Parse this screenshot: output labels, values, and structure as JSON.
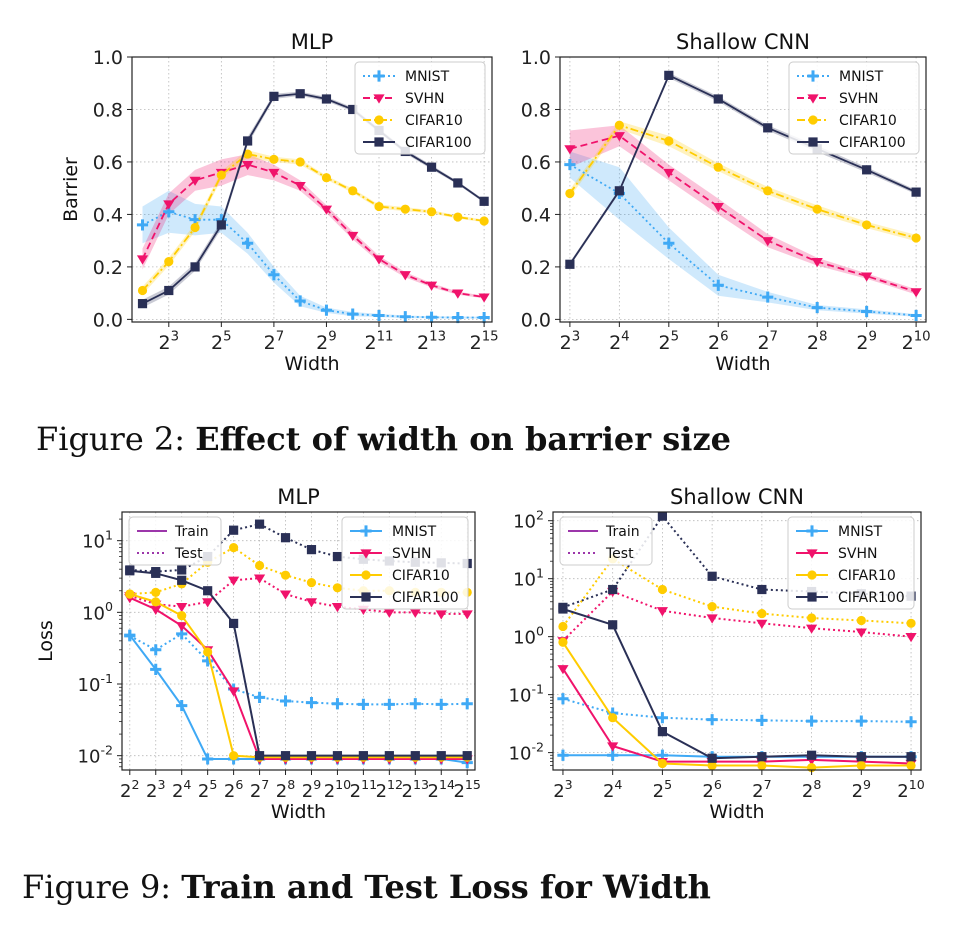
{
  "figures": [
    {
      "caption_label": "Figure 2:",
      "caption_title": "Effect of width on barrier size"
    },
    {
      "caption_label": "Figure 9:",
      "caption_title": "Train and Test Loss for Width"
    }
  ],
  "colors": {
    "MNIST": "#3fa9f5",
    "SVHN": "#f0136b",
    "CIFAR10": "#ffcc00",
    "CIFAR100": "#2a3056"
  },
  "chart_data": [
    {
      "type": "line",
      "title": "MLP",
      "xlabel": "Width",
      "ylabel": "Barrier",
      "xscale": "log2",
      "yscale": "linear",
      "xlim": [
        1.6,
        15.3
      ],
      "ylim": [
        -0.01,
        1.0
      ],
      "xticks": [
        3,
        5,
        7,
        9,
        11,
        13,
        15
      ],
      "yticks": [
        0.0,
        0.2,
        0.4,
        0.6,
        0.8,
        1.0
      ],
      "ytick_labels": [
        "0.0",
        "0.2",
        "0.4",
        "0.6",
        "0.8",
        "1.0"
      ],
      "grid": true,
      "legend": "top-right",
      "x": [
        2,
        3,
        4,
        5,
        6,
        7,
        8,
        9,
        10,
        11,
        12,
        13,
        14,
        15
      ],
      "series": [
        {
          "name": "MNIST",
          "style": "dotted",
          "marker": "plus",
          "values": [
            0.36,
            0.41,
            0.38,
            0.38,
            0.29,
            0.17,
            0.07,
            0.035,
            0.02,
            0.015,
            0.01,
            0.008,
            0.007,
            0.007
          ],
          "band": [
            0.07,
            0.08,
            0.06,
            0.05,
            0.04,
            0.03,
            0.02,
            0.01,
            0.008,
            0.006,
            0.005,
            0.004,
            0.004,
            0.003
          ]
        },
        {
          "name": "SVHN",
          "style": "dashed",
          "marker": "triangle",
          "values": [
            0.23,
            0.44,
            0.53,
            0.56,
            0.59,
            0.56,
            0.51,
            0.42,
            0.32,
            0.23,
            0.17,
            0.13,
            0.1,
            0.085
          ],
          "band": [
            0.04,
            0.04,
            0.04,
            0.05,
            0.04,
            0.03,
            0.02,
            0.015,
            0.015,
            0.012,
            0.01,
            0.008,
            0.006,
            0.005
          ]
        },
        {
          "name": "CIFAR10",
          "style": "dashdot",
          "marker": "circle",
          "values": [
            0.11,
            0.22,
            0.35,
            0.55,
            0.63,
            0.61,
            0.6,
            0.54,
            0.49,
            0.43,
            0.42,
            0.41,
            0.39,
            0.375
          ],
          "band": [
            0.015,
            0.015,
            0.015,
            0.015,
            0.015,
            0.01,
            0.01,
            0.008,
            0.008,
            0.008,
            0.008,
            0.006,
            0.006,
            0.005
          ]
        },
        {
          "name": "CIFAR100",
          "style": "solid",
          "marker": "square",
          "values": [
            0.06,
            0.11,
            0.2,
            0.36,
            0.68,
            0.85,
            0.86,
            0.84,
            0.8,
            0.72,
            0.64,
            0.58,
            0.52,
            0.45
          ],
          "band": [
            0.015,
            0.015,
            0.015,
            0.015,
            0.015,
            0.01,
            0.008,
            0.008,
            0.008,
            0.008,
            0.008,
            0.008,
            0.006,
            0.006
          ]
        }
      ]
    },
    {
      "type": "line",
      "title": "Shallow CNN",
      "xlabel": "Width",
      "ylabel": "",
      "xscale": "log2",
      "yscale": "linear",
      "xlim": [
        2.8,
        10.2
      ],
      "ylim": [
        -0.01,
        1.0
      ],
      "xticks": [
        3,
        4,
        5,
        6,
        7,
        8,
        9,
        10
      ],
      "yticks": [
        0.0,
        0.2,
        0.4,
        0.6,
        0.8,
        1.0
      ],
      "ytick_labels": [
        "0.0",
        "0.2",
        "0.4",
        "0.6",
        "0.8",
        "1.0"
      ],
      "grid": true,
      "legend": "top-right",
      "x": [
        3,
        4,
        5,
        6,
        7,
        8,
        9,
        10
      ],
      "series": [
        {
          "name": "MNIST",
          "style": "dotted",
          "marker": "plus",
          "values": [
            0.59,
            0.48,
            0.29,
            0.13,
            0.085,
            0.045,
            0.03,
            0.015
          ],
          "band": [
            0.05,
            0.1,
            0.06,
            0.04,
            0.02,
            0.01,
            0.008,
            0.005
          ]
        },
        {
          "name": "SVHN",
          "style": "dashed",
          "marker": "triangle",
          "values": [
            0.65,
            0.7,
            0.56,
            0.43,
            0.3,
            0.22,
            0.165,
            0.105
          ],
          "band": [
            0.07,
            0.04,
            0.03,
            0.03,
            0.025,
            0.015,
            0.01,
            0.01
          ]
        },
        {
          "name": "CIFAR10",
          "style": "dashdot",
          "marker": "circle",
          "values": [
            0.48,
            0.74,
            0.68,
            0.58,
            0.49,
            0.42,
            0.36,
            0.31
          ],
          "band": [
            0.015,
            0.015,
            0.02,
            0.015,
            0.015,
            0.015,
            0.012,
            0.012
          ]
        },
        {
          "name": "CIFAR100",
          "style": "solid",
          "marker": "square",
          "values": [
            0.21,
            0.49,
            0.93,
            0.84,
            0.73,
            0.65,
            0.57,
            0.485
          ],
          "band": [
            0.008,
            0.008,
            0.01,
            0.01,
            0.01,
            0.012,
            0.01,
            0.008
          ]
        }
      ]
    },
    {
      "type": "line",
      "title": "MLP",
      "xlabel": "Width",
      "ylabel": "Loss",
      "xscale": "log2",
      "yscale": "log10",
      "xlim": [
        1.7,
        15.3
      ],
      "ylim": [
        -2.2,
        1.4
      ],
      "xticks": [
        2,
        3,
        4,
        5,
        6,
        7,
        8,
        9,
        10,
        11,
        12,
        13,
        14,
        15
      ],
      "yticks": [
        -2,
        -1,
        0,
        1
      ],
      "grid": true,
      "legend": "top-right",
      "style_legend": [
        "Train",
        "Test"
      ],
      "x": [
        2,
        3,
        4,
        5,
        6,
        7,
        8,
        9,
        10,
        11,
        12,
        13,
        14,
        15
      ],
      "series": [
        {
          "name": "MNIST",
          "split": "train",
          "values": [
            0.48,
            0.16,
            0.05,
            0.009,
            0.009,
            0.009,
            0.009,
            0.009,
            0.009,
            0.009,
            0.009,
            0.009,
            0.009,
            0.008
          ]
        },
        {
          "name": "MNIST",
          "split": "test",
          "values": [
            0.47,
            0.3,
            0.5,
            0.21,
            0.085,
            0.065,
            0.058,
            0.055,
            0.053,
            0.052,
            0.052,
            0.053,
            0.052,
            0.053
          ]
        },
        {
          "name": "SVHN",
          "split": "train",
          "values": [
            1.6,
            1.1,
            0.65,
            0.3,
            0.08,
            0.009,
            0.009,
            0.009,
            0.009,
            0.009,
            0.009,
            0.009,
            0.009,
            0.009
          ]
        },
        {
          "name": "SVHN",
          "split": "test",
          "values": [
            1.7,
            1.3,
            1.2,
            1.4,
            2.8,
            3.0,
            1.8,
            1.4,
            1.2,
            1.1,
            1.0,
            1.0,
            0.95,
            0.95
          ]
        },
        {
          "name": "CIFAR10",
          "split": "train",
          "values": [
            1.8,
            1.4,
            0.9,
            0.28,
            0.01,
            0.0095,
            0.0095,
            0.0095,
            0.0095,
            0.0095,
            0.0095,
            0.0095,
            0.0095,
            0.0095
          ]
        },
        {
          "name": "CIFAR10",
          "split": "test",
          "values": [
            1.8,
            1.9,
            2.5,
            5.0,
            8.0,
            4.5,
            3.3,
            2.6,
            2.2,
            2.0,
            2.0,
            1.9,
            1.9,
            1.9
          ]
        },
        {
          "name": "CIFAR100",
          "split": "train",
          "values": [
            3.8,
            3.5,
            2.8,
            2.0,
            0.7,
            0.01,
            0.01,
            0.01,
            0.01,
            0.01,
            0.01,
            0.01,
            0.01,
            0.01
          ]
        },
        {
          "name": "CIFAR100",
          "split": "test",
          "values": [
            3.9,
            3.7,
            3.9,
            6.0,
            14.0,
            17.0,
            11.0,
            7.5,
            6.0,
            5.5,
            5.2,
            5.0,
            4.9,
            4.8
          ]
        }
      ]
    },
    {
      "type": "line",
      "title": "Shallow CNN",
      "xlabel": "Width",
      "ylabel": "",
      "xscale": "log2",
      "yscale": "log10",
      "xlim": [
        2.8,
        10.2
      ],
      "ylim": [
        -2.3,
        2.15
      ],
      "xticks": [
        3,
        4,
        5,
        6,
        7,
        8,
        9,
        10
      ],
      "yticks": [
        -2,
        -1,
        0,
        1,
        2
      ],
      "grid": true,
      "legend": "top-right",
      "style_legend": [
        "Train",
        "Test"
      ],
      "x": [
        3,
        4,
        5,
        6,
        7,
        8,
        9,
        10
      ],
      "series": [
        {
          "name": "MNIST",
          "split": "train",
          "values": [
            0.009,
            0.009,
            0.009,
            0.0085,
            0.0085,
            0.0085,
            0.0085,
            0.0085
          ]
        },
        {
          "name": "MNIST",
          "split": "test",
          "values": [
            0.085,
            0.048,
            0.04,
            0.037,
            0.036,
            0.035,
            0.035,
            0.034
          ]
        },
        {
          "name": "SVHN",
          "split": "train",
          "values": [
            0.28,
            0.013,
            0.007,
            0.007,
            0.007,
            0.0075,
            0.007,
            0.0065
          ]
        },
        {
          "name": "SVHN",
          "split": "test",
          "values": [
            0.85,
            6.0,
            2.8,
            2.1,
            1.7,
            1.4,
            1.2,
            1.0
          ]
        },
        {
          "name": "CIFAR10",
          "split": "train",
          "values": [
            0.8,
            0.04,
            0.0065,
            0.006,
            0.006,
            0.0055,
            0.006,
            0.006
          ]
        },
        {
          "name": "CIFAR10",
          "split": "test",
          "values": [
            1.5,
            22.0,
            6.5,
            3.3,
            2.5,
            2.1,
            1.9,
            1.7
          ]
        },
        {
          "name": "CIFAR100",
          "split": "train",
          "values": [
            3.0,
            1.6,
            0.023,
            0.008,
            0.0085,
            0.009,
            0.0085,
            0.0085
          ]
        },
        {
          "name": "CIFAR100",
          "split": "test",
          "values": [
            3.2,
            6.5,
            120.0,
            11.0,
            6.5,
            6.0,
            5.5,
            5.0
          ]
        }
      ]
    }
  ]
}
